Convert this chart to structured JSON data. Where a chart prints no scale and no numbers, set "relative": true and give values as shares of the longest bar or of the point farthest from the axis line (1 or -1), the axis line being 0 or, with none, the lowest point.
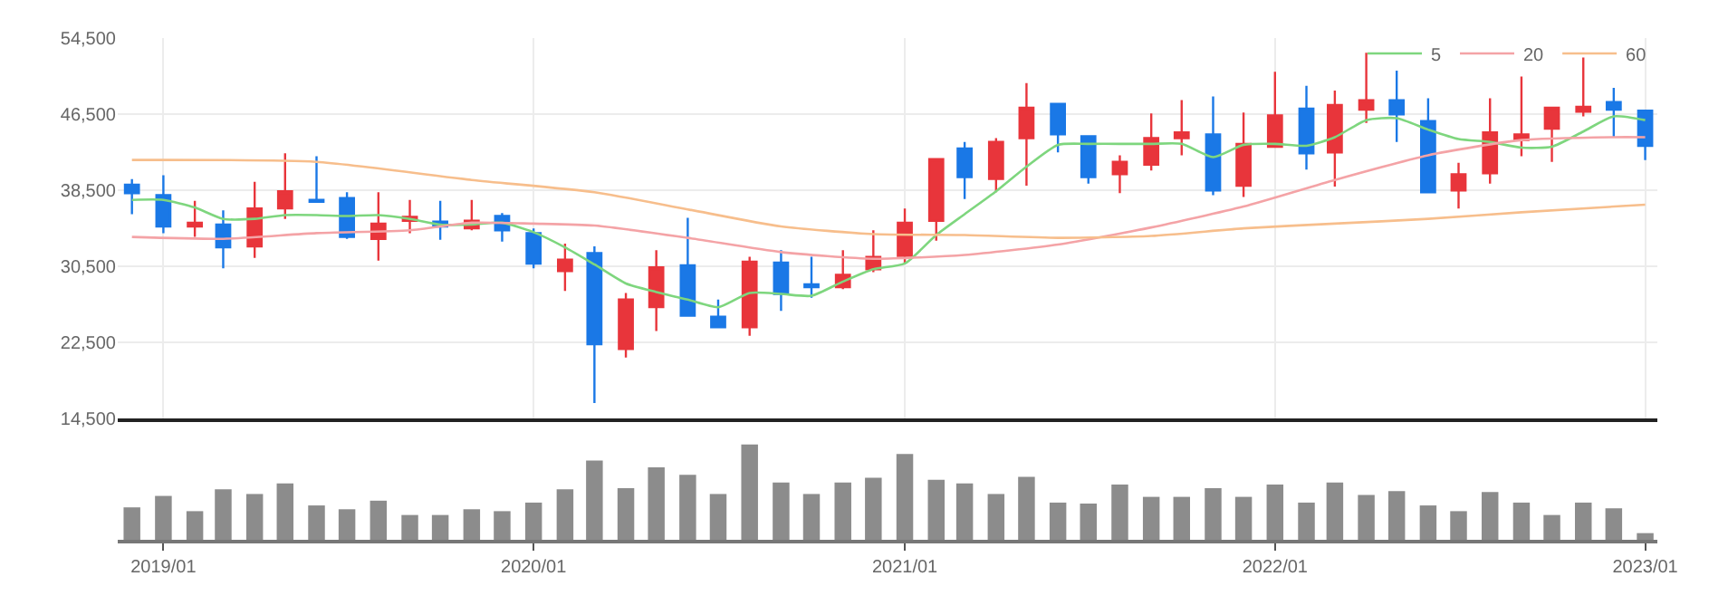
{
  "chart_data": [
    {
      "type": "candlestick",
      "x": [
        "2018-12",
        "2019-01",
        "2019-02",
        "2019-03",
        "2019-04",
        "2019-05",
        "2019-06",
        "2019-07",
        "2019-08",
        "2019-09",
        "2019-10",
        "2019-11",
        "2019-12",
        "2020-01",
        "2020-02",
        "2020-03",
        "2020-04",
        "2020-05",
        "2020-06",
        "2020-07",
        "2020-08",
        "2020-09",
        "2020-10",
        "2020-11",
        "2020-12",
        "2021-01",
        "2021-02",
        "2021-03",
        "2021-04",
        "2021-05",
        "2021-06",
        "2021-07",
        "2021-08",
        "2021-09",
        "2021-10",
        "2021-11",
        "2021-12",
        "2022-01",
        "2022-02",
        "2022-03",
        "2022-04",
        "2022-05",
        "2022-06",
        "2022-07",
        "2022-08",
        "2022-09",
        "2022-10",
        "2022-11",
        "2022-12",
        "2023-01"
      ],
      "ohlc": [
        [
          39100,
          39700,
          36000,
          38200
        ],
        [
          38000,
          40100,
          34000,
          34700
        ],
        [
          34700,
          37400,
          33600,
          35100
        ],
        [
          34900,
          36400,
          30300,
          32500
        ],
        [
          32600,
          39400,
          31400,
          36600
        ],
        [
          36600,
          42400,
          35500,
          38400
        ],
        [
          37500,
          42100,
          37300,
          37300
        ],
        [
          37700,
          38300,
          33400,
          33600
        ],
        [
          33400,
          38300,
          31100,
          35000
        ],
        [
          35300,
          37500,
          34000,
          35700
        ],
        [
          35200,
          37400,
          33300,
          34700
        ],
        [
          34500,
          37500,
          34300,
          35300
        ],
        [
          35800,
          36100,
          33100,
          34300
        ],
        [
          34000,
          34500,
          30300,
          30800
        ],
        [
          30000,
          32900,
          27900,
          31200
        ],
        [
          31900,
          32600,
          16100,
          22300
        ],
        [
          21800,
          27700,
          20900,
          27000
        ],
        [
          26200,
          32200,
          23700,
          30400
        ],
        [
          30600,
          35600,
          25300,
          25300
        ],
        [
          25200,
          27000,
          24100,
          24100
        ],
        [
          24100,
          31500,
          23200,
          31000
        ],
        [
          30900,
          32200,
          25800,
          27600
        ],
        [
          28600,
          31500,
          27200,
          28300
        ],
        [
          28300,
          32200,
          28100,
          29600
        ],
        [
          30200,
          34300,
          29900,
          31500
        ],
        [
          31600,
          36600,
          30900,
          35100
        ],
        [
          35300,
          41800,
          33200,
          41800
        ],
        [
          42900,
          43600,
          37600,
          39900
        ],
        [
          39700,
          44000,
          38300,
          43600
        ],
        [
          44000,
          49800,
          39000,
          47200
        ],
        [
          47600,
          47600,
          42500,
          44400
        ],
        [
          44200,
          44200,
          39200,
          39900
        ],
        [
          40200,
          42200,
          38200,
          41500
        ],
        [
          41200,
          46600,
          40600,
          44000
        ],
        [
          44000,
          48000,
          42200,
          44600
        ],
        [
          44400,
          48400,
          38000,
          38500
        ],
        [
          39000,
          46700,
          37800,
          43400
        ],
        [
          43100,
          51000,
          43100,
          46400
        ],
        [
          47100,
          49500,
          40700,
          42400
        ],
        [
          42500,
          49000,
          38900,
          47500
        ],
        [
          47000,
          53000,
          45600,
          48000
        ],
        [
          48000,
          51100,
          43600,
          46500
        ],
        [
          45800,
          48200,
          38300,
          38300
        ],
        [
          38500,
          41400,
          36600,
          40200
        ],
        [
          40300,
          48200,
          39200,
          44600
        ],
        [
          43800,
          50500,
          42100,
          44400
        ],
        [
          45000,
          47200,
          41500,
          47200
        ],
        [
          46800,
          52500,
          46300,
          47300
        ],
        [
          47800,
          49300,
          44100,
          47000
        ],
        [
          46900,
          46900,
          41700,
          43200
        ]
      ],
      "colors": [
        "#1a78e6",
        "#1a78e6",
        "#e8353b",
        "#1a78e6",
        "#e8353b",
        "#e8353b",
        "#1a78e6",
        "#1a78e6",
        "#e8353b",
        "#e8353b",
        "#1a78e6",
        "#e8353b",
        "#1a78e6",
        "#1a78e6",
        "#e8353b",
        "#1a78e6",
        "#e8353b",
        "#e8353b",
        "#1a78e6",
        "#1a78e6",
        "#e8353b",
        "#1a78e6",
        "#1a78e6",
        "#e8353b",
        "#e8353b",
        "#e8353b",
        "#e8353b",
        "#1a78e6",
        "#e8353b",
        "#e8353b",
        "#1a78e6",
        "#1a78e6",
        "#e8353b",
        "#e8353b",
        "#e8353b",
        "#1a78e6",
        "#e8353b",
        "#e8353b",
        "#1a78e6",
        "#e8353b",
        "#e8353b",
        "#1a78e6",
        "#1a78e6",
        "#e8353b",
        "#e8353b",
        "#e8353b",
        "#e8353b",
        "#e8353b",
        "#1a78e6",
        "#1a78e6"
      ],
      "series": [
        {
          "name": "5",
          "type": "line",
          "color": "#7ed67e",
          "x": [
            "2018-12",
            "2019-01",
            "2019-02",
            "2019-03",
            "2019-04",
            "2019-05",
            "2019-06",
            "2019-07",
            "2019-08",
            "2019-09",
            "2019-10",
            "2019-11",
            "2019-12",
            "2020-01",
            "2020-02",
            "2020-03",
            "2020-04",
            "2020-05",
            "2020-06",
            "2020-07",
            "2020-08",
            "2020-09",
            "2020-10",
            "2020-11",
            "2020-12",
            "2021-01",
            "2021-02",
            "2021-03",
            "2021-04",
            "2021-05",
            "2021-06",
            "2021-07",
            "2021-08",
            "2021-09",
            "2021-10",
            "2021-11",
            "2021-12",
            "2022-01",
            "2022-02",
            "2022-03",
            "2022-04",
            "2022-05",
            "2022-06",
            "2022-07",
            "2022-08",
            "2022-09",
            "2022-10",
            "2022-11",
            "2022-12",
            "2023-01"
          ],
          "values": [
            37500,
            37500,
            36700,
            35500,
            35500,
            35900,
            35900,
            35800,
            35900,
            35500,
            34900,
            34900,
            35100,
            34100,
            32500,
            30700,
            28700,
            27800,
            27000,
            26200,
            27700,
            27600,
            27400,
            28900,
            30200,
            30800,
            33800,
            36000,
            38400,
            41000,
            43300,
            43400,
            43400,
            43400,
            43400,
            42000,
            43300,
            43400,
            43200,
            44100,
            45900,
            46100,
            44900,
            43900,
            43600,
            43000,
            43100,
            44700,
            46300,
            45900
          ]
        },
        {
          "name": "20",
          "type": "line",
          "color": "#f4a3a6",
          "x": [
            "2018-12",
            "2019-03",
            "2019-06",
            "2019-09",
            "2019-11",
            "2020-01",
            "2020-03",
            "2020-06",
            "2020-09",
            "2020-12",
            "2021-03",
            "2021-06",
            "2021-09",
            "2021-12",
            "2022-03",
            "2022-06",
            "2022-09",
            "2022-12",
            "2023-01"
          ],
          "values": [
            33600,
            33400,
            34000,
            34300,
            35100,
            35000,
            34800,
            33500,
            32000,
            31300,
            31700,
            32800,
            34600,
            36800,
            39600,
            42200,
            43800,
            44100,
            44100
          ]
        },
        {
          "name": "60",
          "type": "line",
          "color": "#f7be8c",
          "x": [
            "2018-12",
            "2019-06",
            "2019-11",
            "2020-03",
            "2020-06",
            "2020-09",
            "2020-12",
            "2021-03",
            "2021-06",
            "2021-09",
            "2021-12",
            "2022-03",
            "2022-06",
            "2022-09",
            "2023-01"
          ],
          "values": [
            41700,
            41500,
            39600,
            38300,
            36500,
            34700,
            33900,
            33800,
            33500,
            33700,
            34500,
            35000,
            35500,
            36200,
            37000
          ]
        }
      ],
      "ylim": [
        14500,
        54500
      ],
      "yticks": [
        {
          "value": 14500,
          "label": "14,500"
        },
        {
          "value": 22500,
          "label": "22,500"
        },
        {
          "value": 30500,
          "label": "30,500"
        },
        {
          "value": 38500,
          "label": "38,500"
        },
        {
          "value": 46500,
          "label": "46,500"
        },
        {
          "value": 54500,
          "label": "54,500"
        }
      ],
      "xlim": [
        "2018-11-17",
        "2023-01-13"
      ],
      "xticks": [
        {
          "value": "2019-01",
          "label": null
        },
        {
          "value": "2020-01",
          "label": null
        },
        {
          "value": "2021-01",
          "label": null
        },
        {
          "value": "2022-01",
          "label": null
        },
        {
          "value": "2023-01",
          "label": null
        }
      ],
      "tick_labels": "y",
      "grid": true,
      "legend": "top right"
    },
    {
      "type": "bar",
      "relative": true,
      "color": "#8c8c8c",
      "x": [
        "2018-12",
        "2019-01",
        "2019-02",
        "2019-03",
        "2019-04",
        "2019-05",
        "2019-06",
        "2019-07",
        "2019-08",
        "2019-09",
        "2019-10",
        "2019-11",
        "2019-12",
        "2020-01",
        "2020-02",
        "2020-03",
        "2020-04",
        "2020-05",
        "2020-06",
        "2020-07",
        "2020-08",
        "2020-09",
        "2020-10",
        "2020-11",
        "2020-12",
        "2021-01",
        "2021-02",
        "2021-03",
        "2021-04",
        "2021-05",
        "2021-06",
        "2021-07",
        "2021-08",
        "2021-09",
        "2021-10",
        "2021-11",
        "2021-12",
        "2022-01",
        "2022-02",
        "2022-03",
        "2022-04",
        "2022-05",
        "2022-06",
        "2022-07",
        "2022-08",
        "2022-09",
        "2022-10",
        "2022-11",
        "2022-12",
        "2023-01"
      ],
      "values": [
        0.34,
        0.46,
        0.3,
        0.53,
        0.48,
        0.59,
        0.36,
        0.32,
        0.41,
        0.26,
        0.26,
        0.32,
        0.3,
        0.39,
        0.53,
        0.83,
        0.54,
        0.76,
        0.68,
        0.48,
        1,
        0.6,
        0.48,
        0.6,
        0.65,
        0.9,
        0.63,
        0.59,
        0.48,
        0.66,
        0.39,
        0.38,
        0.58,
        0.45,
        0.45,
        0.54,
        0.45,
        0.58,
        0.39,
        0.6,
        0.47,
        0.51,
        0.36,
        0.3,
        0.5,
        0.39,
        0.26,
        0.39,
        0.33,
        0.07
      ],
      "xlim": [
        "2018-11-17",
        "2023-01-13"
      ],
      "xticks": [
        {
          "value": "2019-01",
          "label": "2019/01"
        },
        {
          "value": "2020-01",
          "label": "2020/01"
        },
        {
          "value": "2021-01",
          "label": "2021/01"
        },
        {
          "value": "2022-01",
          "label": "2022/01"
        },
        {
          "value": "2023-01",
          "label": "2023/01"
        }
      ],
      "tick_labels": "x"
    }
  ]
}
